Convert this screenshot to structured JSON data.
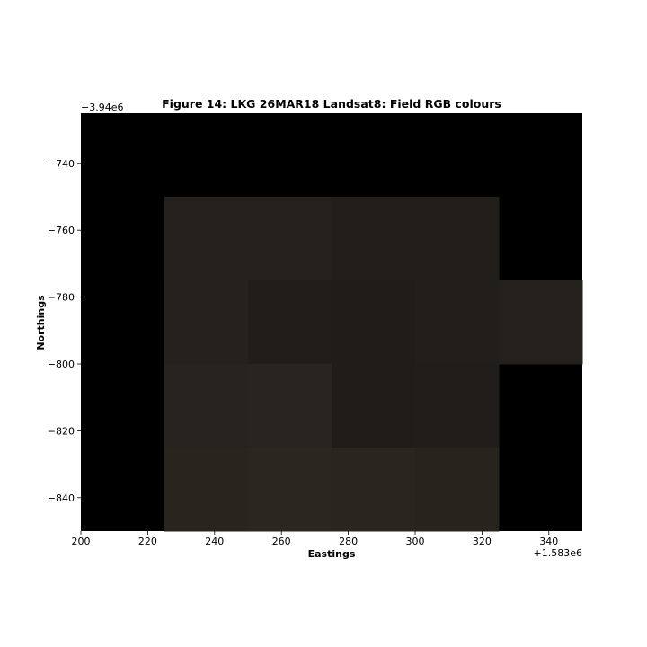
{
  "chart_data": {
    "type": "heatmap",
    "title": "Figure 14: LKG 26MAR18  Landsat8: Field RGB colours",
    "xlabel": "Eastings",
    "ylabel": "Northings",
    "x_offset_label": "+1.583e6",
    "y_offset_label": "−3.94e6",
    "xlim": [
      200,
      350
    ],
    "ylim": [
      -850,
      -725
    ],
    "x_ticks": [
      200,
      220,
      240,
      260,
      280,
      300,
      320,
      340
    ],
    "y_ticks": [
      -740,
      -760,
      -780,
      -800,
      -820,
      -840
    ],
    "x_tick_labels": [
      "200",
      "220",
      "240",
      "260",
      "280",
      "300",
      "320",
      "340"
    ],
    "y_tick_labels": [
      "−740",
      "−760",
      "−780",
      "−800",
      "−820",
      "−840"
    ],
    "background_color": "#000000",
    "cell_size": 25,
    "cells": [
      {
        "x": 225,
        "y": -775,
        "color": "#24211d"
      },
      {
        "x": 250,
        "y": -775,
        "color": "#24211d"
      },
      {
        "x": 275,
        "y": -775,
        "color": "#221f1b"
      },
      {
        "x": 300,
        "y": -775,
        "color": "#221f1b"
      },
      {
        "x": 225,
        "y": -800,
        "color": "#25221e"
      },
      {
        "x": 250,
        "y": -800,
        "color": "#201d1a"
      },
      {
        "x": 275,
        "y": -800,
        "color": "#1f1c19"
      },
      {
        "x": 300,
        "y": -800,
        "color": "#211e1b"
      },
      {
        "x": 325,
        "y": -800,
        "color": "#24211d"
      },
      {
        "x": 225,
        "y": -825,
        "color": "#27241f"
      },
      {
        "x": 250,
        "y": -825,
        "color": "#28241f"
      },
      {
        "x": 275,
        "y": -825,
        "color": "#1f1c19"
      },
      {
        "x": 300,
        "y": -825,
        "color": "#201d1a"
      },
      {
        "x": 225,
        "y": -850,
        "color": "#28251f"
      },
      {
        "x": 250,
        "y": -850,
        "color": "#2a2620"
      },
      {
        "x": 275,
        "y": -850,
        "color": "#29251f"
      },
      {
        "x": 300,
        "y": -850,
        "color": "#27241e"
      }
    ]
  }
}
